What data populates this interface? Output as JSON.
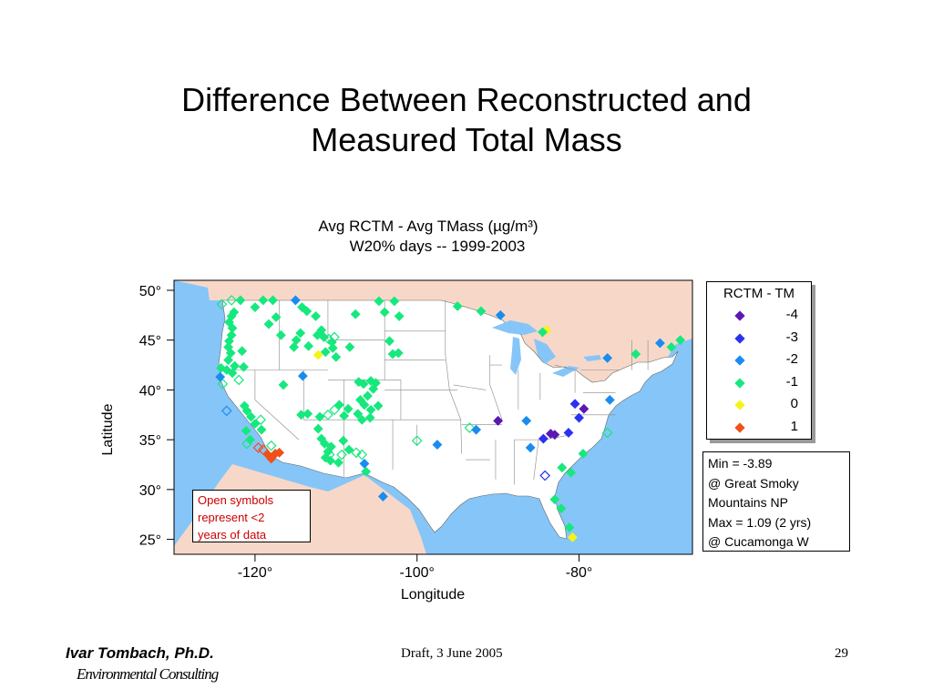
{
  "slide": {
    "title_line1": "Difference Between Reconstructed and",
    "title_line2": "Measured Total Mass",
    "footer_author": "Ivar Tombach, Ph.D.",
    "footer_org": "Environmental Consulting",
    "footer_draft": "Draft, 3 June 2005",
    "page_number": "29"
  },
  "chart_data": {
    "type": "scatter",
    "title_line1": "Avg RCTM - Avg TMass (µg/m³)",
    "title_line2": "W20% days -- 1999-2003",
    "xlabel": "Longitude",
    "ylabel": "Latitude",
    "xlim": [
      -130,
      -66
    ],
    "ylim": [
      23.5,
      51
    ],
    "x_ticks": [
      {
        "value": -120,
        "label": "-120°"
      },
      {
        "value": -100,
        "label": "-100°"
      },
      {
        "value": -80,
        "label": "-80°"
      }
    ],
    "y_ticks": [
      {
        "value": 50,
        "label": "50°"
      },
      {
        "value": 45,
        "label": "45°"
      },
      {
        "value": 40,
        "label": "40°"
      },
      {
        "value": 35,
        "label": "35°"
      },
      {
        "value": 30,
        "label": "30°"
      },
      {
        "value": 25,
        "label": "25°"
      }
    ],
    "legend": {
      "title": "RCTM - TM",
      "placement": "right",
      "entries": [
        {
          "label": "-4",
          "color": "#5b16b4"
        },
        {
          "label": "-3",
          "color": "#2a32ee"
        },
        {
          "label": "-2",
          "color": "#1a8cf0"
        },
        {
          "label": "-1",
          "color": "#17e87e"
        },
        {
          "label": "0",
          "color": "#f4f41a"
        },
        {
          "label": "1",
          "color": "#f0501a"
        }
      ]
    },
    "stats": {
      "line1": "Min = -3.89",
      "line2": "@ Great Smoky",
      "line3": "Mountains NP",
      "line4": "Max = 1.09 (2 yrs)",
      "line5": "@ Cucamonga W"
    },
    "note": {
      "line1": "Open symbols",
      "line2": "represent <2",
      "line3": "years of data"
    },
    "colors": {
      "ocean": "#86c5f8",
      "land": "#ffffff",
      "foreign_land": "#f7d8c8",
      "state_border": "#888888"
    },
    "points": [
      {
        "lon": -124.1,
        "lat": 48.6,
        "v": -1,
        "open": true
      },
      {
        "lon": -122.9,
        "lat": 49.0,
        "v": -1,
        "open": true
      },
      {
        "lon": -121.8,
        "lat": 49.0,
        "v": -1,
        "open": false
      },
      {
        "lon": -122.6,
        "lat": 47.8,
        "v": -1,
        "open": false
      },
      {
        "lon": -122.9,
        "lat": 47.4,
        "v": -1,
        "open": false
      },
      {
        "lon": -123.2,
        "lat": 46.8,
        "v": -1,
        "open": false
      },
      {
        "lon": -122.8,
        "lat": 46.2,
        "v": -1,
        "open": false
      },
      {
        "lon": -122.9,
        "lat": 45.5,
        "v": -1,
        "open": false
      },
      {
        "lon": -123.2,
        "lat": 44.9,
        "v": -1,
        "open": false
      },
      {
        "lon": -123.3,
        "lat": 44.3,
        "v": -1,
        "open": false
      },
      {
        "lon": -123.0,
        "lat": 43.7,
        "v": -1,
        "open": false
      },
      {
        "lon": -123.3,
        "lat": 43.0,
        "v": -1,
        "open": false
      },
      {
        "lon": -122.5,
        "lat": 42.4,
        "v": -1,
        "open": false
      },
      {
        "lon": -123.5,
        "lat": 42.0,
        "v": -1,
        "open": false
      },
      {
        "lon": -122.8,
        "lat": 41.7,
        "v": -1,
        "open": false
      },
      {
        "lon": -121.6,
        "lat": 43.9,
        "v": -1,
        "open": false
      },
      {
        "lon": -121.4,
        "lat": 42.3,
        "v": -1,
        "open": false
      },
      {
        "lon": -122.0,
        "lat": 41.0,
        "v": -1,
        "open": true
      },
      {
        "lon": -124.0,
        "lat": 40.6,
        "v": -1,
        "open": true
      },
      {
        "lon": -124.2,
        "lat": 42.2,
        "v": -1,
        "open": false
      },
      {
        "lon": -124.3,
        "lat": 41.3,
        "v": -2,
        "open": false
      },
      {
        "lon": -123.5,
        "lat": 37.9,
        "v": -2,
        "open": true
      },
      {
        "lon": -121.3,
        "lat": 38.4,
        "v": -1,
        "open": false
      },
      {
        "lon": -121.0,
        "lat": 37.9,
        "v": -1,
        "open": false
      },
      {
        "lon": -120.5,
        "lat": 37.3,
        "v": -1,
        "open": false
      },
      {
        "lon": -120.0,
        "lat": 36.6,
        "v": -1,
        "open": false
      },
      {
        "lon": -119.2,
        "lat": 36.0,
        "v": -1,
        "open": false
      },
      {
        "lon": -119.3,
        "lat": 37.0,
        "v": -1,
        "open": true
      },
      {
        "lon": -120.6,
        "lat": 35.0,
        "v": -1,
        "open": false
      },
      {
        "lon": -121.0,
        "lat": 34.6,
        "v": -1,
        "open": true
      },
      {
        "lon": -119.6,
        "lat": 34.2,
        "v": 1,
        "open": true
      },
      {
        "lon": -119.0,
        "lat": 34.0,
        "v": 1,
        "open": true
      },
      {
        "lon": -118.4,
        "lat": 33.5,
        "v": 1,
        "open": false
      },
      {
        "lon": -118.0,
        "lat": 33.1,
        "v": 1,
        "open": false
      },
      {
        "lon": -117.5,
        "lat": 33.6,
        "v": 1,
        "open": false
      },
      {
        "lon": -117.0,
        "lat": 33.7,
        "v": 1,
        "open": false
      },
      {
        "lon": -118.0,
        "lat": 34.4,
        "v": -1,
        "open": true
      },
      {
        "lon": -121.1,
        "lat": 35.9,
        "v": -1,
        "open": false
      },
      {
        "lon": -120.0,
        "lat": 48.3,
        "v": -1,
        "open": false
      },
      {
        "lon": -119.0,
        "lat": 49.0,
        "v": -1,
        "open": false
      },
      {
        "lon": -117.8,
        "lat": 49.0,
        "v": -1,
        "open": false
      },
      {
        "lon": -117.4,
        "lat": 47.3,
        "v": -1,
        "open": false
      },
      {
        "lon": -118.3,
        "lat": 46.6,
        "v": -1,
        "open": false
      },
      {
        "lon": -116.8,
        "lat": 45.5,
        "v": -1,
        "open": false
      },
      {
        "lon": -115.0,
        "lat": 49.0,
        "v": -2,
        "open": false
      },
      {
        "lon": -114.2,
        "lat": 48.3,
        "v": -1,
        "open": false
      },
      {
        "lon": -113.6,
        "lat": 47.9,
        "v": -1,
        "open": false
      },
      {
        "lon": -112.5,
        "lat": 47.4,
        "v": -1,
        "open": false
      },
      {
        "lon": -111.8,
        "lat": 46.0,
        "v": -1,
        "open": false
      },
      {
        "lon": -112.3,
        "lat": 45.5,
        "v": -1,
        "open": false
      },
      {
        "lon": -114.4,
        "lat": 45.7,
        "v": -1,
        "open": false
      },
      {
        "lon": -115.2,
        "lat": 44.3,
        "v": -1,
        "open": false
      },
      {
        "lon": -114.9,
        "lat": 45.0,
        "v": -1,
        "open": false
      },
      {
        "lon": -113.4,
        "lat": 44.4,
        "v": -1,
        "open": false
      },
      {
        "lon": -112.2,
        "lat": 43.5,
        "v": 0,
        "open": false
      },
      {
        "lon": -111.5,
        "lat": 45.3,
        "v": -1,
        "open": false
      },
      {
        "lon": -110.9,
        "lat": 45.1,
        "v": -1,
        "open": true
      },
      {
        "lon": -110.5,
        "lat": 44.8,
        "v": -1,
        "open": false
      },
      {
        "lon": -110.2,
        "lat": 45.3,
        "v": -1,
        "open": true
      },
      {
        "lon": -110.4,
        "lat": 44.2,
        "v": -1,
        "open": false
      },
      {
        "lon": -111.3,
        "lat": 43.8,
        "v": -1,
        "open": false
      },
      {
        "lon": -110.0,
        "lat": 43.3,
        "v": -1,
        "open": false
      },
      {
        "lon": -114.1,
        "lat": 41.4,
        "v": -2,
        "open": false
      },
      {
        "lon": -107.6,
        "lat": 47.6,
        "v": -1,
        "open": false
      },
      {
        "lon": -104.7,
        "lat": 48.9,
        "v": -1,
        "open": false
      },
      {
        "lon": -104.0,
        "lat": 47.8,
        "v": -1,
        "open": false
      },
      {
        "lon": -102.8,
        "lat": 48.9,
        "v": -1,
        "open": false
      },
      {
        "lon": -103.4,
        "lat": 44.9,
        "v": -1,
        "open": false
      },
      {
        "lon": -102.3,
        "lat": 43.7,
        "v": -1,
        "open": false
      },
      {
        "lon": -103.0,
        "lat": 43.6,
        "v": -1,
        "open": false
      },
      {
        "lon": -107.2,
        "lat": 40.8,
        "v": -1,
        "open": false
      },
      {
        "lon": -106.6,
        "lat": 40.6,
        "v": -1,
        "open": false
      },
      {
        "lon": -105.7,
        "lat": 40.9,
        "v": -1,
        "open": false
      },
      {
        "lon": -105.1,
        "lat": 40.7,
        "v": -1,
        "open": false
      },
      {
        "lon": -105.4,
        "lat": 40.1,
        "v": -1,
        "open": false
      },
      {
        "lon": -106.1,
        "lat": 39.4,
        "v": -1,
        "open": false
      },
      {
        "lon": -107.0,
        "lat": 39.0,
        "v": -1,
        "open": false
      },
      {
        "lon": -106.5,
        "lat": 38.5,
        "v": -1,
        "open": false
      },
      {
        "lon": -105.7,
        "lat": 38.0,
        "v": -1,
        "open": false
      },
      {
        "lon": -104.8,
        "lat": 38.4,
        "v": -1,
        "open": false
      },
      {
        "lon": -105.8,
        "lat": 37.2,
        "v": -1,
        "open": false
      },
      {
        "lon": -106.8,
        "lat": 37.0,
        "v": -1,
        "open": false
      },
      {
        "lon": -107.3,
        "lat": 37.6,
        "v": -1,
        "open": false
      },
      {
        "lon": -108.5,
        "lat": 38.1,
        "v": -1,
        "open": false
      },
      {
        "lon": -109.0,
        "lat": 37.4,
        "v": -1,
        "open": false
      },
      {
        "lon": -109.6,
        "lat": 38.5,
        "v": -1,
        "open": false
      },
      {
        "lon": -110.2,
        "lat": 38.0,
        "v": -1,
        "open": true
      },
      {
        "lon": -111.0,
        "lat": 37.5,
        "v": -1,
        "open": true
      },
      {
        "lon": -112.0,
        "lat": 37.3,
        "v": -1,
        "open": false
      },
      {
        "lon": -112.2,
        "lat": 36.1,
        "v": -1,
        "open": false
      },
      {
        "lon": -111.8,
        "lat": 35.1,
        "v": -1,
        "open": false
      },
      {
        "lon": -111.4,
        "lat": 34.6,
        "v": -1,
        "open": false
      },
      {
        "lon": -110.6,
        "lat": 34.3,
        "v": -1,
        "open": false
      },
      {
        "lon": -111.0,
        "lat": 33.8,
        "v": -1,
        "open": false
      },
      {
        "lon": -110.8,
        "lat": 33.5,
        "v": -1,
        "open": true
      },
      {
        "lon": -110.7,
        "lat": 32.9,
        "v": -1,
        "open": false
      },
      {
        "lon": -111.3,
        "lat": 33.2,
        "v": -1,
        "open": false
      },
      {
        "lon": -109.7,
        "lat": 32.7,
        "v": -1,
        "open": false
      },
      {
        "lon": -109.3,
        "lat": 33.5,
        "v": -1,
        "open": true
      },
      {
        "lon": -109.1,
        "lat": 34.9,
        "v": -1,
        "open": false
      },
      {
        "lon": -108.4,
        "lat": 34.0,
        "v": -1,
        "open": false
      },
      {
        "lon": -107.5,
        "lat": 33.7,
        "v": -1,
        "open": true
      },
      {
        "lon": -106.8,
        "lat": 33.5,
        "v": -1,
        "open": true
      },
      {
        "lon": -106.5,
        "lat": 32.6,
        "v": -2,
        "open": false
      },
      {
        "lon": -106.3,
        "lat": 31.8,
        "v": -1,
        "open": false
      },
      {
        "lon": -114.3,
        "lat": 37.5,
        "v": -1,
        "open": false
      },
      {
        "lon": -113.5,
        "lat": 37.6,
        "v": -1,
        "open": false
      },
      {
        "lon": -116.5,
        "lat": 40.5,
        "v": -1,
        "open": false
      },
      {
        "lon": -100.0,
        "lat": 34.9,
        "v": -1,
        "open": true
      },
      {
        "lon": -104.2,
        "lat": 29.3,
        "v": -2,
        "open": false
      },
      {
        "lon": -97.5,
        "lat": 34.5,
        "v": -2,
        "open": false
      },
      {
        "lon": -93.5,
        "lat": 36.2,
        "v": -1,
        "open": true
      },
      {
        "lon": -92.7,
        "lat": 36.0,
        "v": -2,
        "open": false
      },
      {
        "lon": -90.0,
        "lat": 36.9,
        "v": -4,
        "open": false
      },
      {
        "lon": -86.5,
        "lat": 36.9,
        "v": -2,
        "open": false
      },
      {
        "lon": -84.4,
        "lat": 35.1,
        "v": -3,
        "open": false
      },
      {
        "lon": -83.5,
        "lat": 35.6,
        "v": -4,
        "open": false
      },
      {
        "lon": -83.0,
        "lat": 35.5,
        "v": -4,
        "open": false
      },
      {
        "lon": -81.3,
        "lat": 35.7,
        "v": -3,
        "open": false
      },
      {
        "lon": -86.0,
        "lat": 34.2,
        "v": -2,
        "open": false
      },
      {
        "lon": -84.2,
        "lat": 31.4,
        "v": -3,
        "open": true
      },
      {
        "lon": -82.1,
        "lat": 32.2,
        "v": -1,
        "open": false
      },
      {
        "lon": -79.5,
        "lat": 33.6,
        "v": -1,
        "open": false
      },
      {
        "lon": -76.5,
        "lat": 35.7,
        "v": -1,
        "open": true
      },
      {
        "lon": -81.0,
        "lat": 31.7,
        "v": -1,
        "open": false
      },
      {
        "lon": -83.0,
        "lat": 29.0,
        "v": -1,
        "open": false
      },
      {
        "lon": -82.2,
        "lat": 28.1,
        "v": -1,
        "open": false
      },
      {
        "lon": -81.2,
        "lat": 26.2,
        "v": -1,
        "open": false
      },
      {
        "lon": -80.8,
        "lat": 25.2,
        "v": 0,
        "open": false
      },
      {
        "lon": -80.5,
        "lat": 38.6,
        "v": -3,
        "open": false
      },
      {
        "lon": -79.4,
        "lat": 38.1,
        "v": -4,
        "open": false
      },
      {
        "lon": -80.0,
        "lat": 37.2,
        "v": -3,
        "open": false
      },
      {
        "lon": -76.2,
        "lat": 39.0,
        "v": -2,
        "open": false
      },
      {
        "lon": -73.0,
        "lat": 43.6,
        "v": -1,
        "open": false
      },
      {
        "lon": -76.5,
        "lat": 43.2,
        "v": -2,
        "open": false
      },
      {
        "lon": -68.6,
        "lat": 44.3,
        "v": -1,
        "open": false
      },
      {
        "lon": -67.5,
        "lat": 45.0,
        "v": -1,
        "open": false
      },
      {
        "lon": -70.0,
        "lat": 44.7,
        "v": -2,
        "open": false
      },
      {
        "lon": -95.0,
        "lat": 48.4,
        "v": -1,
        "open": false
      },
      {
        "lon": -92.1,
        "lat": 47.9,
        "v": -1,
        "open": false
      },
      {
        "lon": -89.7,
        "lat": 47.5,
        "v": -2,
        "open": false
      },
      {
        "lon": -84.0,
        "lat": 46.0,
        "v": 0,
        "open": false
      },
      {
        "lon": -84.5,
        "lat": 45.8,
        "v": -1,
        "open": false
      },
      {
        "lon": -102.2,
        "lat": 47.4,
        "v": -1,
        "open": false
      },
      {
        "lon": -108.3,
        "lat": 44.3,
        "v": -1,
        "open": false
      }
    ]
  }
}
